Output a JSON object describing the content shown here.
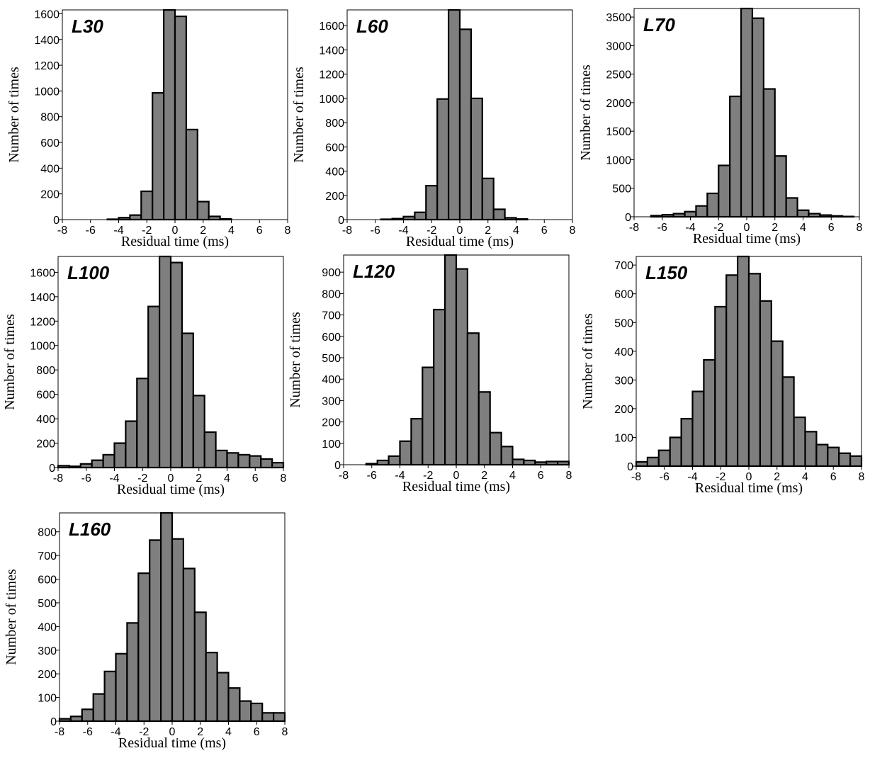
{
  "colors": {
    "bar_fill": "#7f7f7f",
    "bar_stroke": "#000000",
    "background": "#ffffff"
  },
  "chart_data": [
    {
      "type": "bar",
      "panel_label": "L30",
      "xlabel": "Residual time (ms)",
      "ylabel": "Number of times",
      "xlim": [
        -8,
        8
      ],
      "ylim": [
        0,
        1630
      ],
      "xticks": [
        "-8",
        "-6",
        "-4",
        "-2",
        "0",
        "2",
        "4",
        "6",
        "8"
      ],
      "yticks": [
        "0",
        "200",
        "400",
        "600",
        "800",
        "1000",
        "1200",
        "1400",
        "1600"
      ],
      "bin_width": 0.8,
      "bin_centers": [
        -4.4,
        -3.6,
        -2.8,
        -2.0,
        -1.2,
        -0.4,
        0.4,
        1.2,
        2.0,
        2.8,
        3.6
      ],
      "values": [
        3,
        15,
        35,
        220,
        985,
        1630,
        1580,
        700,
        140,
        25,
        5
      ],
      "grid": false
    },
    {
      "type": "bar",
      "panel_label": "L60",
      "xlabel": "Residual time (ms)",
      "ylabel": "Number of times",
      "xlim": [
        -8,
        8
      ],
      "ylim": [
        0,
        1730
      ],
      "xticks": [
        "-8",
        "-6",
        "-4",
        "-2",
        "0",
        "2",
        "4",
        "6",
        "8"
      ],
      "yticks": [
        "0",
        "200",
        "400",
        "600",
        "800",
        "1000",
        "1200",
        "1400",
        "1600"
      ],
      "bin_width": 0.8,
      "bin_centers": [
        -5.2,
        -4.4,
        -3.6,
        -2.8,
        -2.0,
        -1.2,
        -0.4,
        0.4,
        1.2,
        2.0,
        2.8,
        3.6,
        4.4
      ],
      "values": [
        3,
        8,
        25,
        60,
        280,
        995,
        1730,
        1570,
        1000,
        340,
        85,
        15,
        5
      ],
      "grid": false
    },
    {
      "type": "bar",
      "panel_label": "L70",
      "xlabel": "Residual time (ms)",
      "ylabel": "Number of times",
      "xlim": [
        -8,
        8
      ],
      "ylim": [
        0,
        3650
      ],
      "xticks": [
        "-8",
        "-6",
        "-4",
        "-2",
        "0",
        "2",
        "4",
        "6",
        "8"
      ],
      "yticks": [
        "0",
        "500",
        "1000",
        "1500",
        "2000",
        "2500",
        "3000",
        "3500"
      ],
      "bin_width": 0.8,
      "bin_centers": [
        -6.4,
        -5.6,
        -4.8,
        -4.0,
        -3.2,
        -2.4,
        -1.6,
        -0.8,
        0.0,
        0.8,
        1.6,
        2.4,
        3.2,
        4.0,
        4.8,
        5.6,
        6.4,
        7.2
      ],
      "values": [
        20,
        35,
        55,
        90,
        190,
        410,
        900,
        2110,
        3650,
        3480,
        2240,
        1065,
        330,
        115,
        55,
        30,
        15,
        5
      ],
      "grid": false
    },
    {
      "type": "bar",
      "panel_label": "L100",
      "xlabel": "Residual time (ms)",
      "ylabel": "Number of times",
      "xlim": [
        -8,
        8
      ],
      "ylim": [
        0,
        1730
      ],
      "xticks": [
        "-8",
        "-6",
        "-4",
        "-2",
        "0",
        "2",
        "4",
        "6",
        "8"
      ],
      "yticks": [
        "0",
        "200",
        "400",
        "600",
        "800",
        "1000",
        "1200",
        "1400",
        "1600"
      ],
      "bin_width": 0.8,
      "bin_centers": [
        -7.6,
        -6.8,
        -6.0,
        -5.2,
        -4.4,
        -3.6,
        -2.8,
        -2.0,
        -1.2,
        -0.4,
        0.4,
        1.2,
        2.0,
        2.8,
        3.6,
        4.4,
        5.2,
        6.0,
        6.8,
        7.6
      ],
      "values": [
        15,
        10,
        30,
        60,
        105,
        200,
        380,
        730,
        1320,
        1730,
        1680,
        1100,
        590,
        290,
        140,
        120,
        105,
        95,
        70,
        40
      ],
      "grid": false
    },
    {
      "type": "bar",
      "panel_label": "L120",
      "xlabel": "Residual time (ms)",
      "ylabel": "Number of times",
      "xlim": [
        -8,
        8
      ],
      "ylim": [
        0,
        980
      ],
      "xticks": [
        "-8",
        "-6",
        "-4",
        "-2",
        "0",
        "2",
        "4",
        "6",
        "8"
      ],
      "yticks": [
        "0",
        "100",
        "200",
        "300",
        "400",
        "500",
        "600",
        "700",
        "800",
        "900"
      ],
      "bin_width": 0.8,
      "bin_centers": [
        -6.0,
        -5.2,
        -4.4,
        -3.6,
        -2.8,
        -2.0,
        -1.2,
        -0.4,
        0.4,
        1.2,
        2.0,
        2.8,
        3.6,
        4.4,
        5.2,
        6.0,
        6.8,
        7.6
      ],
      "values": [
        5,
        20,
        40,
        110,
        215,
        455,
        725,
        980,
        915,
        615,
        340,
        150,
        85,
        25,
        20,
        12,
        15,
        15
      ],
      "grid": false
    },
    {
      "type": "bar",
      "panel_label": "L150",
      "xlabel": "Residual time (ms)",
      "ylabel": "Number of times",
      "xlim": [
        -8,
        8
      ],
      "ylim": [
        0,
        730
      ],
      "xticks": [
        "-8",
        "-6",
        "-4",
        "-2",
        "0",
        "2",
        "4",
        "6",
        "8"
      ],
      "yticks": [
        "0",
        "100",
        "200",
        "300",
        "400",
        "500",
        "600",
        "700"
      ],
      "bin_width": 0.8,
      "bin_centers": [
        -7.6,
        -6.8,
        -6.0,
        -5.2,
        -4.4,
        -3.6,
        -2.8,
        -2.0,
        -1.2,
        -0.4,
        0.4,
        1.2,
        2.0,
        2.8,
        3.6,
        4.4,
        5.2,
        6.0,
        6.8,
        7.6
      ],
      "values": [
        15,
        30,
        55,
        100,
        165,
        260,
        370,
        555,
        665,
        730,
        670,
        575,
        435,
        310,
        170,
        120,
        75,
        65,
        45,
        35
      ],
      "grid": false
    },
    {
      "type": "bar",
      "panel_label": "L160",
      "xlabel": "Residual time (ms)",
      "ylabel": "Number of times",
      "xlim": [
        -8,
        8
      ],
      "ylim": [
        0,
        880
      ],
      "xticks": [
        "-8",
        "-6",
        "-4",
        "-2",
        "0",
        "2",
        "4",
        "6",
        "8"
      ],
      "yticks": [
        "0",
        "100",
        "200",
        "300",
        "400",
        "500",
        "600",
        "700",
        "800"
      ],
      "bin_width": 0.8,
      "bin_centers": [
        -7.6,
        -6.8,
        -6.0,
        -5.2,
        -4.4,
        -3.6,
        -2.8,
        -2.0,
        -1.2,
        -0.4,
        0.4,
        1.2,
        2.0,
        2.8,
        3.6,
        4.4,
        5.2,
        6.0,
        6.8,
        7.6
      ],
      "values": [
        10,
        20,
        50,
        115,
        210,
        285,
        415,
        625,
        765,
        880,
        770,
        645,
        460,
        290,
        205,
        140,
        85,
        75,
        35,
        35
      ],
      "grid": false
    }
  ]
}
